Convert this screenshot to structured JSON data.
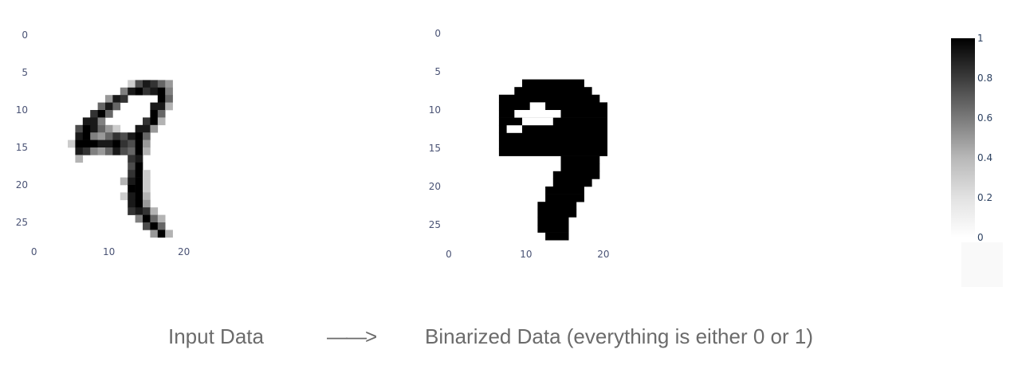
{
  "chart_data": [
    {
      "type": "heatmap",
      "colorscale": "greys",
      "x_ticks": [
        0,
        10,
        20
      ],
      "y_ticks": [
        0,
        5,
        10,
        15,
        20,
        25
      ],
      "x_tick_labels": [
        "0",
        "10",
        "20"
      ],
      "y_tick_labels": [
        "0",
        "5",
        "10",
        "15",
        "20",
        "25"
      ],
      "xlim": [
        0,
        27
      ],
      "ylim": [
        27,
        0
      ],
      "cells": [
        [
          6,
          12,
          0.7
        ],
        [
          7,
          12,
          0.8
        ],
        [
          8,
          12,
          0.9
        ],
        [
          9,
          12,
          0.6
        ],
        [
          10,
          12,
          0.4
        ],
        [
          11,
          12,
          0.2
        ],
        [
          13,
          6,
          0.2
        ],
        [
          14,
          6,
          0.7
        ],
        [
          15,
          6,
          0.9
        ],
        [
          16,
          6,
          0.8
        ],
        [
          17,
          6,
          0.6
        ],
        [
          18,
          6,
          0.4
        ],
        [
          12,
          7,
          0.5
        ],
        [
          13,
          7,
          0.9
        ],
        [
          14,
          7,
          1
        ],
        [
          15,
          7,
          0.8
        ],
        [
          16,
          7,
          0.9
        ],
        [
          17,
          7,
          1
        ],
        [
          18,
          7,
          0.5
        ],
        [
          10,
          8,
          0.4
        ],
        [
          11,
          8,
          0.9
        ],
        [
          12,
          8,
          0.8
        ],
        [
          17,
          8,
          1
        ],
        [
          18,
          8,
          0.6
        ],
        [
          9,
          9,
          0.6
        ],
        [
          10,
          9,
          0.9
        ],
        [
          11,
          9,
          0.6
        ],
        [
          16,
          9,
          0.9
        ],
        [
          17,
          9,
          0.9
        ],
        [
          18,
          9,
          0.3
        ],
        [
          8,
          10,
          0.8
        ],
        [
          9,
          10,
          1
        ],
        [
          10,
          10,
          0.6
        ],
        [
          16,
          10,
          1
        ],
        [
          17,
          10,
          0.6
        ],
        [
          7,
          11,
          0.9
        ],
        [
          8,
          11,
          0.9
        ],
        [
          9,
          11,
          0.5
        ],
        [
          15,
          11,
          0.8
        ],
        [
          16,
          11,
          1
        ],
        [
          17,
          11,
          0.3
        ],
        [
          6,
          12,
          0.7
        ],
        [
          7,
          12,
          1
        ],
        [
          8,
          12,
          0.6
        ],
        [
          14,
          12,
          0.9
        ],
        [
          15,
          12,
          0.9
        ],
        [
          16,
          12,
          0.4
        ],
        [
          6,
          13,
          0.9
        ],
        [
          7,
          13,
          1
        ],
        [
          8,
          13,
          0.5
        ],
        [
          9,
          13,
          0.4
        ],
        [
          10,
          13,
          0.6
        ],
        [
          11,
          13,
          0.8
        ],
        [
          12,
          13,
          0.7
        ],
        [
          13,
          13,
          0.9
        ],
        [
          14,
          13,
          1
        ],
        [
          15,
          13,
          0.6
        ],
        [
          5,
          14,
          0.2
        ],
        [
          6,
          14,
          1
        ],
        [
          7,
          14,
          1
        ],
        [
          8,
          14,
          1
        ],
        [
          9,
          14,
          0.9
        ],
        [
          10,
          14,
          0.9
        ],
        [
          11,
          14,
          1
        ],
        [
          12,
          14,
          0.8
        ],
        [
          13,
          14,
          0.7
        ],
        [
          14,
          14,
          1
        ],
        [
          15,
          14,
          0.4
        ],
        [
          6,
          15,
          0.9
        ],
        [
          7,
          15,
          0.8
        ],
        [
          8,
          15,
          0.5
        ],
        [
          9,
          15,
          0.4
        ],
        [
          10,
          15,
          0.6
        ],
        [
          11,
          15,
          0.9
        ],
        [
          12,
          15,
          0.7
        ],
        [
          13,
          15,
          0.6
        ],
        [
          14,
          15,
          1
        ],
        [
          15,
          15,
          0.3
        ],
        [
          6,
          16,
          0.3
        ],
        [
          13,
          16,
          0.8
        ],
        [
          14,
          16,
          0.9
        ],
        [
          13,
          17,
          0.7
        ],
        [
          14,
          17,
          1
        ],
        [
          13,
          18,
          0.8
        ],
        [
          14,
          18,
          1
        ],
        [
          15,
          18,
          0.2
        ],
        [
          12,
          19,
          0.3
        ],
        [
          13,
          19,
          0.9
        ],
        [
          14,
          19,
          1
        ],
        [
          15,
          19,
          0.2
        ],
        [
          13,
          20,
          1
        ],
        [
          14,
          20,
          1
        ],
        [
          15,
          20,
          0.2
        ],
        [
          12,
          21,
          0.2
        ],
        [
          13,
          21,
          0.9
        ],
        [
          14,
          21,
          1
        ],
        [
          15,
          21,
          0.3
        ],
        [
          13,
          22,
          0.9
        ],
        [
          14,
          22,
          1
        ],
        [
          15,
          22,
          0.4
        ],
        [
          13,
          23,
          0.8
        ],
        [
          14,
          23,
          0.9
        ],
        [
          15,
          23,
          0.8
        ],
        [
          16,
          23,
          0.3
        ],
        [
          14,
          24,
          0.5
        ],
        [
          15,
          24,
          1
        ],
        [
          16,
          24,
          0.6
        ],
        [
          17,
          24,
          0.3
        ],
        [
          15,
          25,
          0.7
        ],
        [
          16,
          25,
          1
        ],
        [
          17,
          25,
          0.6
        ],
        [
          16,
          26,
          0.4
        ],
        [
          17,
          26,
          1
        ],
        [
          18,
          26,
          0.3
        ]
      ]
    },
    {
      "type": "heatmap",
      "colorscale": "greys",
      "x_ticks": [
        0,
        10,
        20
      ],
      "y_ticks": [
        0,
        5,
        10,
        15,
        20,
        25
      ],
      "x_tick_labels": [
        "0",
        "10",
        "20"
      ],
      "y_tick_labels": [
        "0",
        "5",
        "10",
        "15",
        "20",
        "25"
      ],
      "xlim": [
        0,
        27
      ],
      "ylim": [
        27,
        0
      ],
      "runs": [
        [
          6,
          10,
          17
        ],
        [
          7,
          9,
          18
        ],
        [
          8,
          7,
          19
        ],
        [
          9,
          7,
          20
        ],
        [
          10,
          7,
          20
        ],
        [
          11,
          7,
          20
        ],
        [
          12,
          7,
          20
        ],
        [
          13,
          7,
          20
        ],
        [
          14,
          7,
          20
        ],
        [
          15,
          7,
          20
        ],
        [
          16,
          15,
          19
        ],
        [
          17,
          15,
          19
        ],
        [
          18,
          14,
          19
        ],
        [
          19,
          14,
          18
        ],
        [
          20,
          13,
          17
        ],
        [
          21,
          13,
          17
        ],
        [
          22,
          12,
          16
        ],
        [
          23,
          12,
          16
        ],
        [
          24,
          12,
          15
        ],
        [
          25,
          12,
          15
        ],
        [
          26,
          13,
          15
        ]
      ],
      "holes": [
        [
          9,
          11,
          12
        ],
        [
          10,
          9,
          14
        ],
        [
          11,
          10,
          13
        ],
        [
          12,
          8,
          9
        ]
      ]
    }
  ],
  "colorbar": {
    "ticks": [
      "1",
      "0.8",
      "0.6",
      "0.4",
      "0.2",
      "0"
    ],
    "range": [
      0,
      1
    ]
  },
  "captions": {
    "left": "Input Data",
    "arrow": "——>",
    "right": "Binarized Data (everything is either 0 or 1)"
  }
}
